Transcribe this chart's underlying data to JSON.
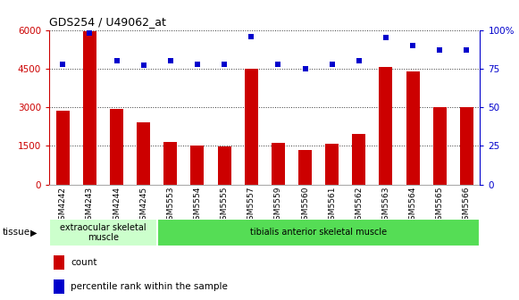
{
  "title": "GDS254 / U49062_at",
  "categories": [
    "GSM4242",
    "GSM4243",
    "GSM4244",
    "GSM4245",
    "GSM5553",
    "GSM5554",
    "GSM5555",
    "GSM5557",
    "GSM5559",
    "GSM5560",
    "GSM5561",
    "GSM5562",
    "GSM5563",
    "GSM5564",
    "GSM5565",
    "GSM5566"
  ],
  "counts": [
    2850,
    5950,
    2950,
    2400,
    1650,
    1530,
    1480,
    4480,
    1620,
    1350,
    1580,
    1980,
    4550,
    4400,
    3000,
    3000
  ],
  "percentiles": [
    78,
    98,
    80,
    77,
    80,
    78,
    78,
    96,
    78,
    75,
    78,
    80,
    95,
    90,
    87,
    87
  ],
  "bar_color": "#cc0000",
  "dot_color": "#0000cc",
  "ylim_left": [
    0,
    6000
  ],
  "ylim_right": [
    0,
    100
  ],
  "yticks_left": [
    0,
    1500,
    3000,
    4500,
    6000
  ],
  "yticks_right": [
    0,
    25,
    50,
    75,
    100
  ],
  "yticklabels_right": [
    "0",
    "25",
    "50",
    "75",
    "100%"
  ],
  "tissue_groups": [
    {
      "label": "extraocular skeletal\nmuscle",
      "start": 0,
      "end": 4,
      "color": "#ccffcc"
    },
    {
      "label": "tibialis anterior skeletal muscle",
      "start": 4,
      "end": 16,
      "color": "#55dd55"
    }
  ],
  "tissue_label": "tissue",
  "legend_items": [
    {
      "color": "#cc0000",
      "label": "count"
    },
    {
      "color": "#0000cc",
      "label": "percentile rank within the sample"
    }
  ],
  "background_color": "#ffffff",
  "plot_bg_color": "#ffffff",
  "xtick_bg_color": "#dddddd",
  "grid_color": "#000000",
  "bar_width": 0.5
}
